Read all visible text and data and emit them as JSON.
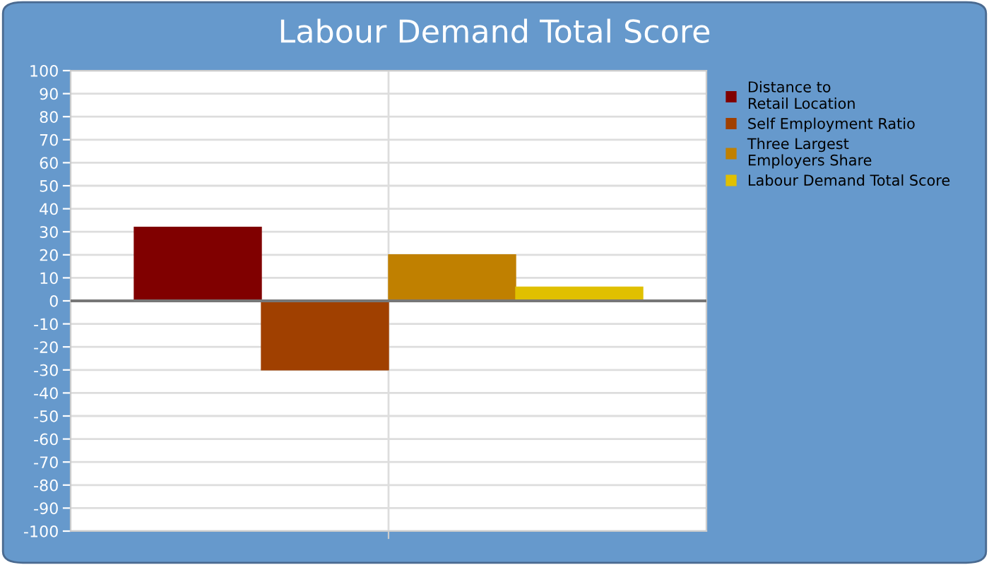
{
  "chart_data": {
    "type": "bar",
    "title": "Labour Demand Total Score",
    "categories": [
      null
    ],
    "series": [
      {
        "name": "Distance to\nRetail Location",
        "color": "#800000",
        "values": [
          32
        ]
      },
      {
        "name": "Self Employment Ratio",
        "color": "#a04000",
        "values": [
          -30
        ]
      },
      {
        "name": "Three Largest\nEmployers Share",
        "color": "#c08000",
        "values": [
          20
        ]
      },
      {
        "name": "Labour Demand Total Score",
        "color": "#e0c000",
        "values": [
          6
        ]
      }
    ],
    "ylim": [
      -100,
      100
    ],
    "yticks": [
      -100,
      -90,
      -80,
      -70,
      -60,
      -50,
      -40,
      -30,
      -20,
      -10,
      0,
      10,
      20,
      30,
      40,
      50,
      60,
      70,
      80,
      90,
      100
    ],
    "grid": true,
    "legend": "right"
  }
}
